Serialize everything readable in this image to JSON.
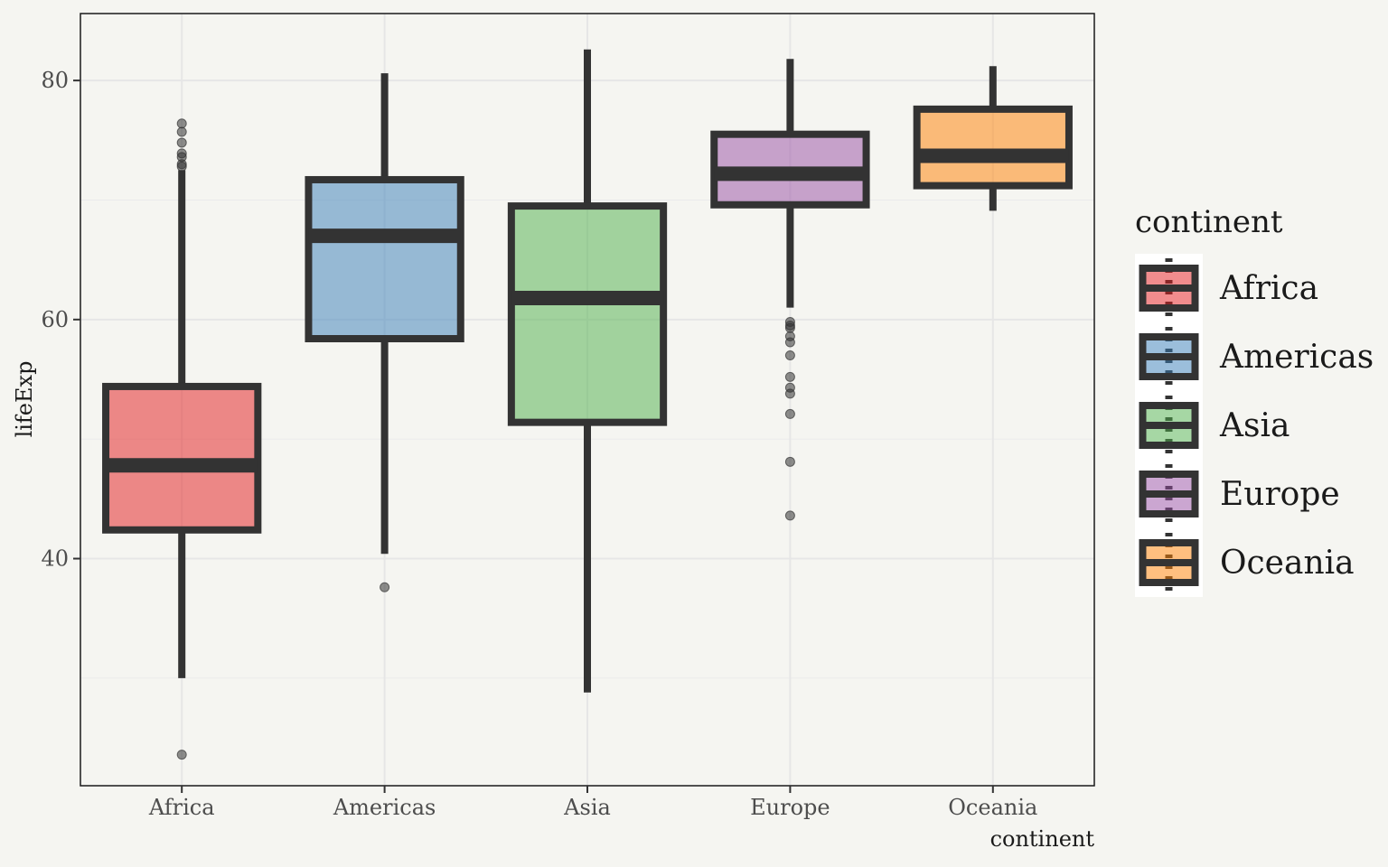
{
  "chart_data": {
    "type": "boxplot",
    "xlabel": "continent",
    "ylabel": "lifeExp",
    "ylim": [
      21.0,
      85.6
    ],
    "y_ticks": [
      40,
      60,
      80
    ],
    "y_minor_ticks": [
      30,
      50,
      70
    ],
    "grid": true,
    "legend": {
      "title": "continent",
      "position": "right"
    },
    "categories": [
      "Africa",
      "Americas",
      "Asia",
      "Europe",
      "Oceania"
    ],
    "boxes": [
      {
        "name": "Africa",
        "color": "#e41a1c",
        "lower_whisker": 30.0,
        "q1": 42.4,
        "median": 47.8,
        "q3": 54.4,
        "upper_whisker": 72.5,
        "outliers": [
          23.6,
          72.8,
          73.0,
          73.6,
          73.9,
          74.8,
          75.7,
          76.4
        ]
      },
      {
        "name": "Americas",
        "color": "#377eb8",
        "lower_whisker": 40.4,
        "q1": 58.4,
        "median": 67.0,
        "q3": 71.7,
        "upper_whisker": 80.6,
        "outliers": [
          37.6
        ]
      },
      {
        "name": "Asia",
        "color": "#4daf4a",
        "lower_whisker": 28.8,
        "q1": 51.4,
        "median": 61.8,
        "q3": 69.5,
        "upper_whisker": 82.6,
        "outliers": []
      },
      {
        "name": "Europe",
        "color": "#984ea3",
        "lower_whisker": 61.0,
        "q1": 69.6,
        "median": 72.2,
        "q3": 75.5,
        "upper_whisker": 81.8,
        "outliers": [
          43.6,
          48.1,
          52.1,
          53.8,
          54.3,
          55.2,
          57.0,
          58.1,
          58.6,
          59.3,
          59.5,
          59.8
        ]
      },
      {
        "name": "Oceania",
        "color": "#ff7f00",
        "lower_whisker": 69.1,
        "q1": 71.2,
        "median": 73.7,
        "q3": 77.6,
        "upper_whisker": 81.2,
        "outliers": []
      }
    ]
  }
}
